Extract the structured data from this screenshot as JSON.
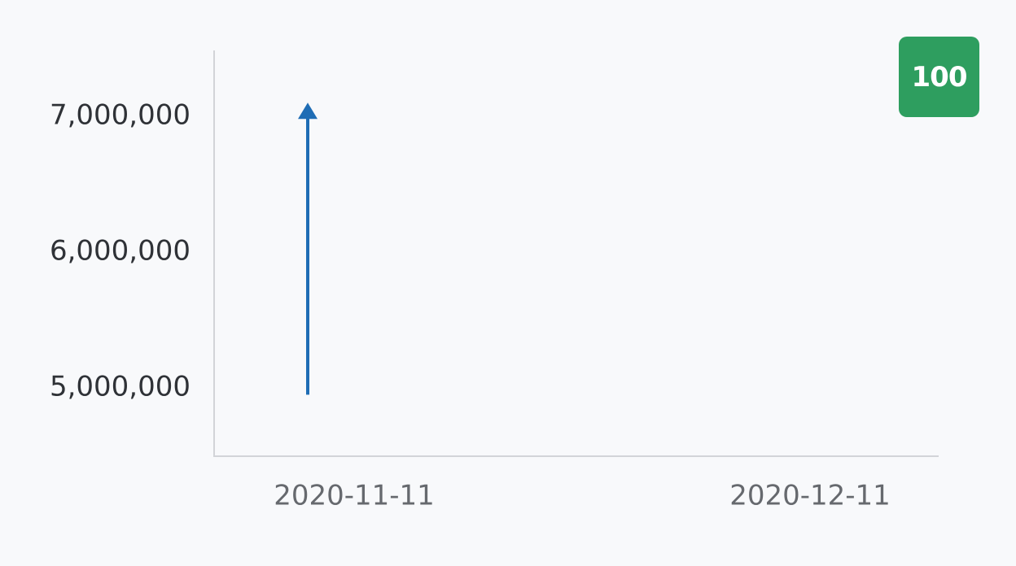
{
  "chart_data": {
    "type": "line",
    "title": "",
    "xlabel": "",
    "ylabel": "",
    "x_ticks": [
      "2020-11-11",
      "2020-12-11"
    ],
    "y_ticks": [
      "5,000,000",
      "6,000,000",
      "7,000,000"
    ],
    "y_tick_values": [
      5000000,
      6000000,
      7000000
    ],
    "ylim": [
      4500000,
      7500000
    ],
    "grid": false,
    "series": [
      {
        "marker": "arrow-up",
        "color": "#1f6db5",
        "points": [
          {
            "x": "2020-11-11",
            "y": 4950000
          },
          {
            "x": "2020-11-11",
            "y": 7100000
          }
        ]
      }
    ]
  },
  "badge": {
    "value": "100",
    "color": "#2e9e5f"
  }
}
